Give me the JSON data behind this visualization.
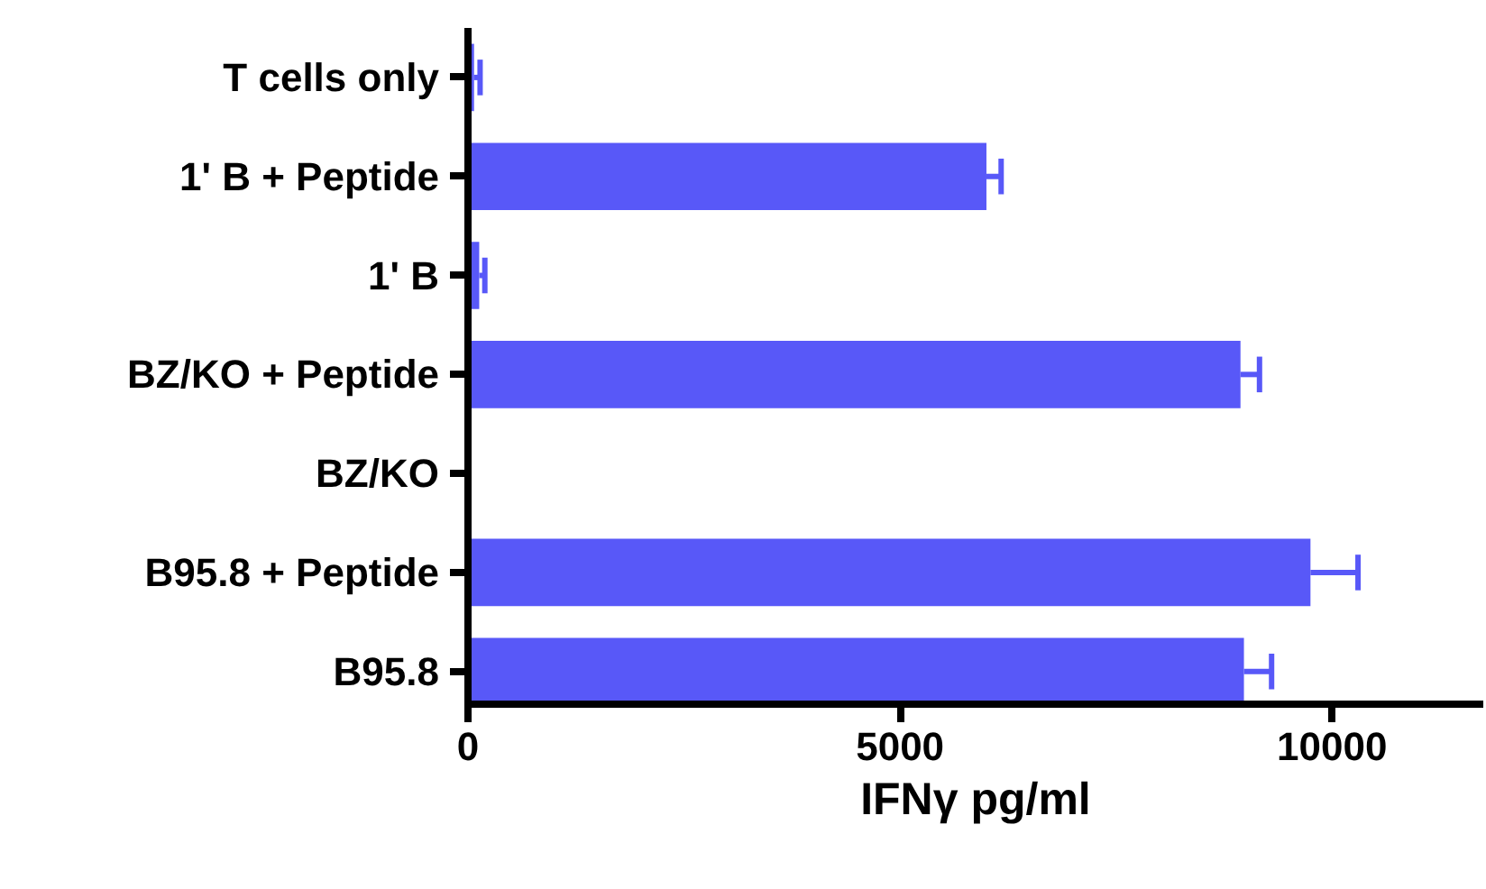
{
  "chart_data": {
    "type": "bar",
    "orientation": "horizontal",
    "xlabel": "IFNγ pg/ml",
    "categories": [
      "T cells only",
      "1' B + Peptide",
      "1' B",
      "BZ/KO + Peptide",
      "BZ/KO",
      "B95.8 + Peptide",
      "B95.8"
    ],
    "values": [
      70,
      6000,
      130,
      8940,
      0,
      9750,
      8980
    ],
    "errors": [
      [
        70,
        140
      ],
      [
        6000,
        6170
      ],
      [
        130,
        195
      ],
      [
        8940,
        9160
      ],
      null,
      [
        9750,
        10300
      ],
      [
        8980,
        9300
      ]
    ],
    "color": "#5858f8",
    "xlim": [
      0,
      11750
    ],
    "xticks": [
      0,
      5000,
      10000
    ],
    "grid": false
  }
}
